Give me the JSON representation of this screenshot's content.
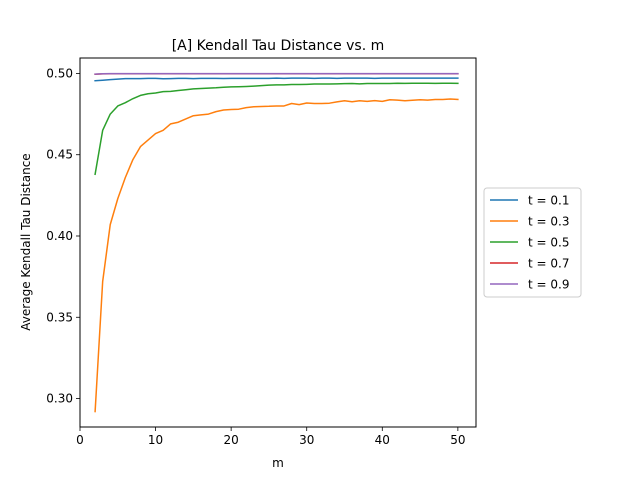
{
  "chart_data": {
    "type": "line",
    "title": "[A] Kendall Tau Distance vs. m",
    "xlabel": "m",
    "ylabel": "Average Kendall Tau Distance",
    "xlim": [
      0,
      52.4
    ],
    "ylim": [
      0.2825,
      0.5095
    ],
    "xticks": [
      0,
      10,
      20,
      30,
      40,
      50
    ],
    "xtick_labels": [
      "0",
      "10",
      "20",
      "30",
      "40",
      "50"
    ],
    "yticks": [
      0.3,
      0.35,
      0.4,
      0.45,
      0.5
    ],
    "ytick_labels": [
      "0.30",
      "0.35",
      "0.40",
      "0.45",
      "0.50"
    ],
    "grid": false,
    "legend_position": "center-right outside",
    "x": [
      2,
      3,
      4,
      5,
      6,
      7,
      8,
      9,
      10,
      11,
      12,
      13,
      14,
      15,
      16,
      17,
      18,
      19,
      20,
      21,
      22,
      23,
      24,
      25,
      26,
      27,
      28,
      29,
      30,
      31,
      32,
      33,
      34,
      35,
      36,
      37,
      38,
      39,
      40,
      41,
      42,
      43,
      44,
      45,
      46,
      47,
      48,
      49,
      50
    ],
    "series": [
      {
        "name": "t = 0.1",
        "color": "#1f77b4",
        "values": [
          0.4955,
          0.4958,
          0.4962,
          0.4965,
          0.4968,
          0.4968,
          0.4968,
          0.497,
          0.497,
          0.4967,
          0.4968,
          0.497,
          0.497,
          0.4968,
          0.497,
          0.497,
          0.497,
          0.4969,
          0.497,
          0.497,
          0.497,
          0.497,
          0.497,
          0.497,
          0.4971,
          0.497,
          0.4971,
          0.4971,
          0.4971,
          0.497,
          0.4971,
          0.4971,
          0.497,
          0.4971,
          0.4971,
          0.4971,
          0.4971,
          0.497,
          0.4971,
          0.4971,
          0.4971,
          0.4971,
          0.4971,
          0.4971,
          0.4971,
          0.4971,
          0.4971,
          0.4971,
          0.4971
        ]
      },
      {
        "name": "t = 0.3",
        "color": "#ff7f0e",
        "values": [
          0.292,
          0.372,
          0.407,
          0.423,
          0.436,
          0.447,
          0.455,
          0.459,
          0.463,
          0.465,
          0.469,
          0.47,
          0.472,
          0.474,
          0.4745,
          0.475,
          0.4765,
          0.4775,
          0.4778,
          0.478,
          0.479,
          0.4795,
          0.4797,
          0.4798,
          0.48,
          0.48,
          0.4815,
          0.4808,
          0.4818,
          0.4815,
          0.4815,
          0.4817,
          0.4825,
          0.4832,
          0.4826,
          0.4832,
          0.4828,
          0.4833,
          0.4828,
          0.4838,
          0.4836,
          0.4832,
          0.4835,
          0.4838,
          0.4836,
          0.484,
          0.484,
          0.4843,
          0.484
        ]
      },
      {
        "name": "t = 0.5",
        "color": "#2ca02c",
        "values": [
          0.438,
          0.465,
          0.475,
          0.48,
          0.482,
          0.4845,
          0.4865,
          0.4875,
          0.488,
          0.4888,
          0.489,
          0.4895,
          0.49,
          0.4905,
          0.4907,
          0.491,
          0.4912,
          0.4915,
          0.4917,
          0.4918,
          0.492,
          0.4922,
          0.4925,
          0.4928,
          0.493,
          0.493,
          0.4932,
          0.4932,
          0.4933,
          0.4935,
          0.4935,
          0.4935,
          0.4936,
          0.4937,
          0.4938,
          0.4936,
          0.4938,
          0.4938,
          0.4938,
          0.4938,
          0.494,
          0.4939,
          0.494,
          0.494,
          0.494,
          0.4939,
          0.494,
          0.494,
          0.4939
        ]
      },
      {
        "name": "t = 0.7",
        "color": "#d62728",
        "values": [
          0.4995,
          0.4997,
          0.4998,
          0.4998,
          0.4998,
          0.4998,
          0.4998,
          0.4998,
          0.4998,
          0.4998,
          0.4998,
          0.4998,
          0.4998,
          0.4998,
          0.4998,
          0.4998,
          0.4998,
          0.4998,
          0.4998,
          0.4998,
          0.4998,
          0.4998,
          0.4998,
          0.4998,
          0.4998,
          0.4998,
          0.4998,
          0.4998,
          0.4998,
          0.4998,
          0.4998,
          0.4998,
          0.4998,
          0.4998,
          0.4998,
          0.4998,
          0.4998,
          0.4998,
          0.4998,
          0.4998,
          0.4998,
          0.4998,
          0.4998,
          0.4998,
          0.4998,
          0.4998,
          0.4998,
          0.4998,
          0.4998
        ]
      },
      {
        "name": "t = 0.9",
        "color": "#9467bd",
        "values": [
          0.4996,
          0.4998,
          0.4999,
          0.4999,
          0.4999,
          0.4999,
          0.4999,
          0.4999,
          0.4999,
          0.4999,
          0.4999,
          0.4999,
          0.4999,
          0.4999,
          0.4999,
          0.4999,
          0.4999,
          0.4999,
          0.4999,
          0.4999,
          0.4999,
          0.4999,
          0.4999,
          0.4999,
          0.4999,
          0.4999,
          0.4999,
          0.4999,
          0.4999,
          0.4999,
          0.4999,
          0.4999,
          0.4999,
          0.4999,
          0.4999,
          0.4999,
          0.4999,
          0.4999,
          0.4999,
          0.4999,
          0.4999,
          0.4999,
          0.4999,
          0.4999,
          0.4999,
          0.4999,
          0.4999,
          0.4999,
          0.4999
        ]
      }
    ]
  }
}
